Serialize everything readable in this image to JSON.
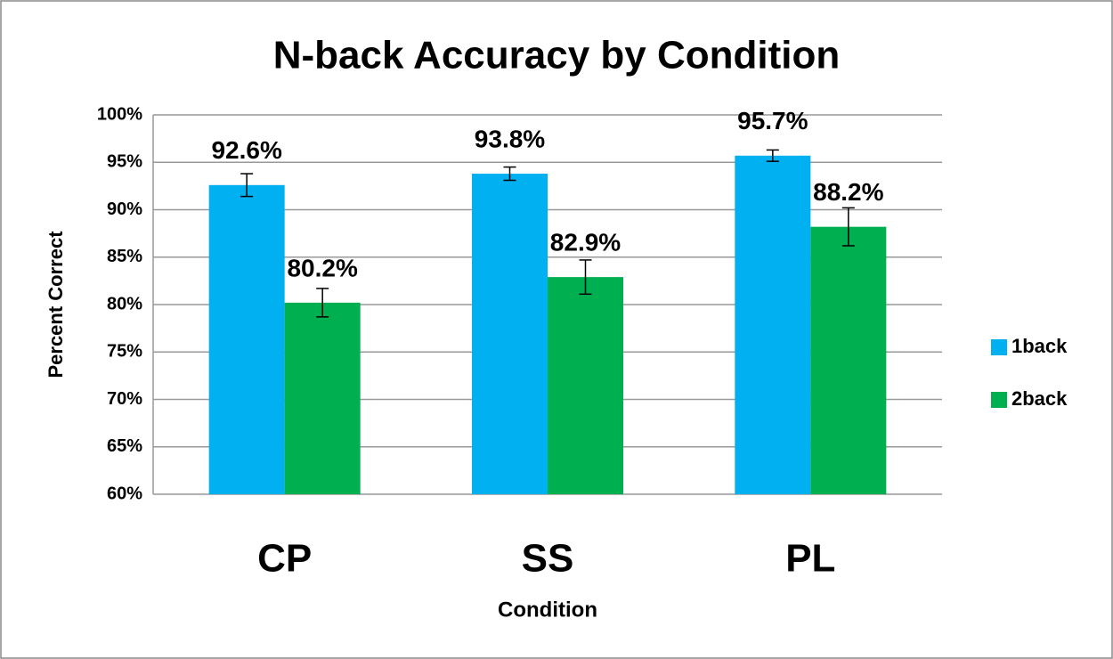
{
  "chart_data": {
    "type": "bar",
    "title": "N-back Accuracy by Condition",
    "x_label": "Condition",
    "y_label": "Percent Correct",
    "categories": [
      "CP",
      "SS",
      "PL"
    ],
    "series": [
      {
        "name": "1back",
        "color": "#00b0f0",
        "values": [
          92.6,
          93.8,
          95.7
        ],
        "value_labels": [
          "92.6%",
          "93.8%",
          "95.7%"
        ],
        "errors": [
          1.2,
          0.7,
          0.6
        ]
      },
      {
        "name": "2back",
        "color": "#00b050",
        "values": [
          80.2,
          82.9,
          88.2
        ],
        "value_labels": [
          "80.2%",
          "82.9%",
          "88.2%"
        ],
        "errors": [
          1.5,
          1.8,
          2.0
        ]
      }
    ],
    "ylim": [
      60,
      100
    ],
    "yticks": [
      {
        "value": 60,
        "label": "60%"
      },
      {
        "value": 65,
        "label": "65%"
      },
      {
        "value": 70,
        "label": "70%"
      },
      {
        "value": 75,
        "label": "75%"
      },
      {
        "value": 80,
        "label": "80%"
      },
      {
        "value": 85,
        "label": "85%"
      },
      {
        "value": 90,
        "label": "90%"
      },
      {
        "value": 95,
        "label": "95%"
      },
      {
        "value": 100,
        "label": "100%"
      }
    ],
    "grid": true,
    "legend": "right"
  }
}
